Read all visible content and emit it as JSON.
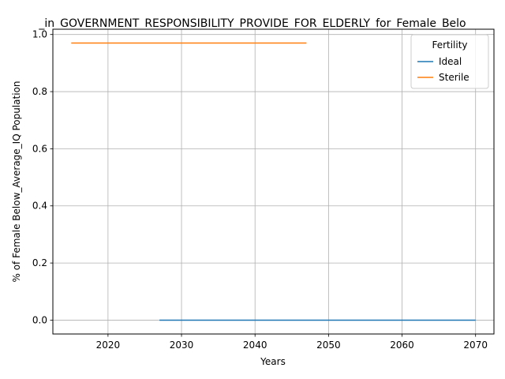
{
  "chart_data": {
    "type": "line",
    "title": "_in_GOVERNMENT_RESPONSIBILITY_PROVIDE_FOR_ELDERLY_for_Female_Belo",
    "xlabel": "Years",
    "ylabel": "% of Female Below_Average_IQ Population",
    "xlim": [
      2012.5,
      2072.5
    ],
    "ylim": [
      -0.0485,
      1.0185
    ],
    "xticks": [
      2020,
      2030,
      2040,
      2050,
      2060,
      2070
    ],
    "yticks": [
      0.0,
      0.2,
      0.4,
      0.6,
      0.8,
      1.0
    ],
    "xtick_labels": [
      "2020",
      "2030",
      "2040",
      "2050",
      "2060",
      "2070"
    ],
    "ytick_labels": [
      "0.0",
      "0.2",
      "0.4",
      "0.6",
      "0.8",
      "1.0"
    ],
    "grid": true,
    "legend": {
      "title": "Fertility",
      "placement": "top-right"
    },
    "series": [
      {
        "name": "Ideal",
        "color": "#1f77b4",
        "x": [
          2027,
          2070
        ],
        "y": [
          0.0,
          0.0
        ]
      },
      {
        "name": "Sterile",
        "color": "#ff7f0e",
        "x": [
          2015,
          2047
        ],
        "y": [
          0.97,
          0.97
        ]
      }
    ]
  }
}
